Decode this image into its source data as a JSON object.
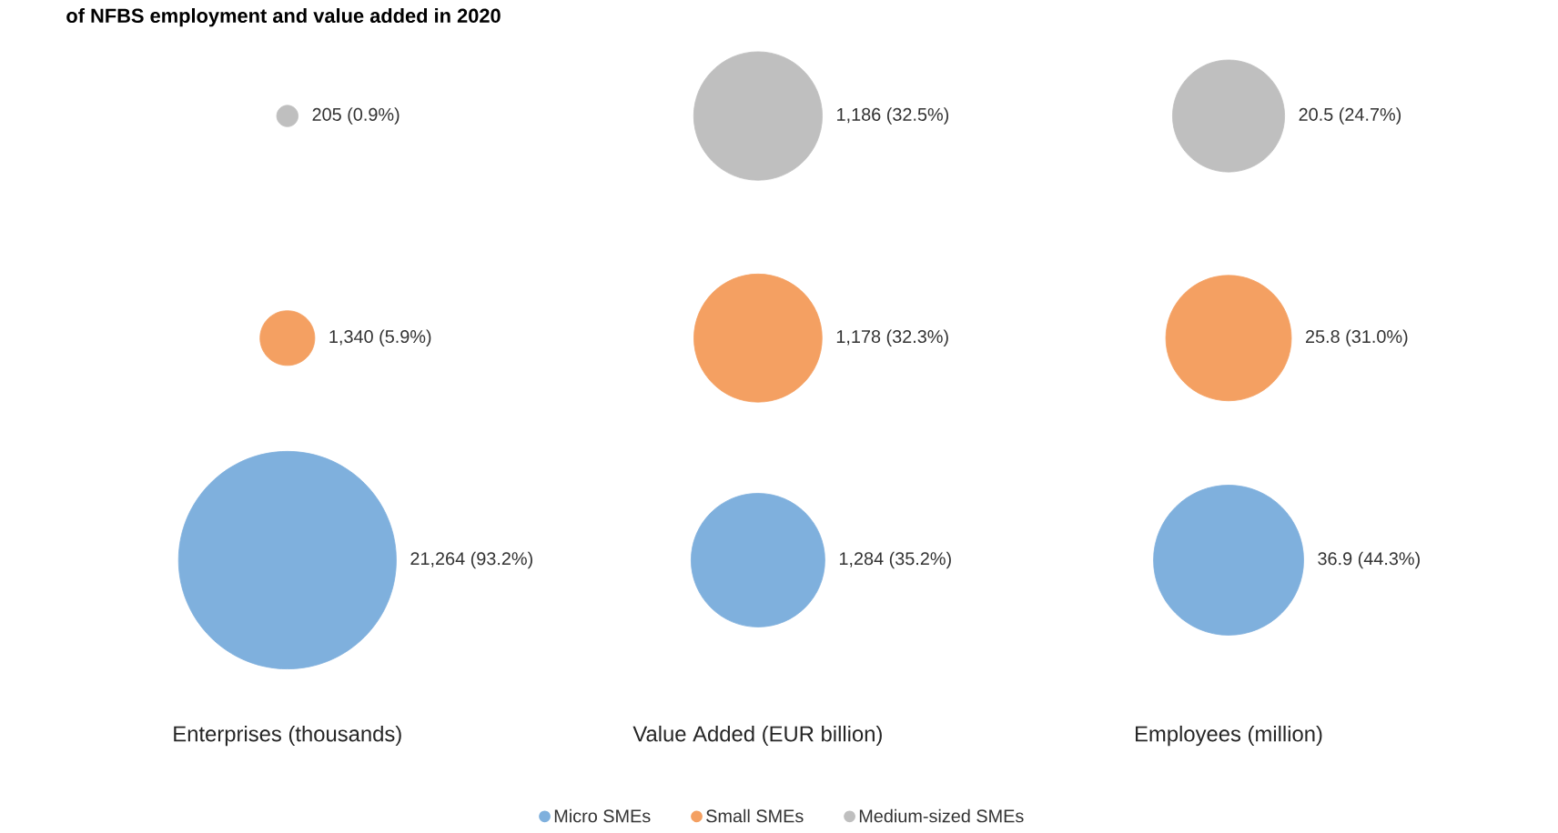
{
  "chart_data": {
    "type": "other",
    "title": "of NFBS employment and value added in 2020",
    "categories": [
      "Enterprises (thousands)",
      "Value Added (EUR billion)",
      "Employees (million)"
    ],
    "legend": "bottom",
    "series": [
      {
        "name": "Micro SMEs",
        "color": "#7fb0dd",
        "values": [
          93.2,
          35.2,
          44.3
        ],
        "value_labels": [
          "21,264 (93.2%)",
          "1,284 (35.2%)",
          "36.9 (44.3%)"
        ]
      },
      {
        "name": "Small SMEs",
        "color": "#f4a062",
        "values": [
          5.9,
          32.3,
          31.0
        ],
        "value_labels": [
          "1,340 (5.9%)",
          "1,178 (32.3%)",
          "25.8 (31.0%)"
        ]
      },
      {
        "name": "Medium-sized SMEs",
        "color": "#bfbfbf",
        "values": [
          0.9,
          32.5,
          24.7
        ],
        "value_labels": [
          "205 (0.9%)",
          "1,186 (32.5%)",
          "20.5 (24.7%)"
        ]
      }
    ]
  }
}
